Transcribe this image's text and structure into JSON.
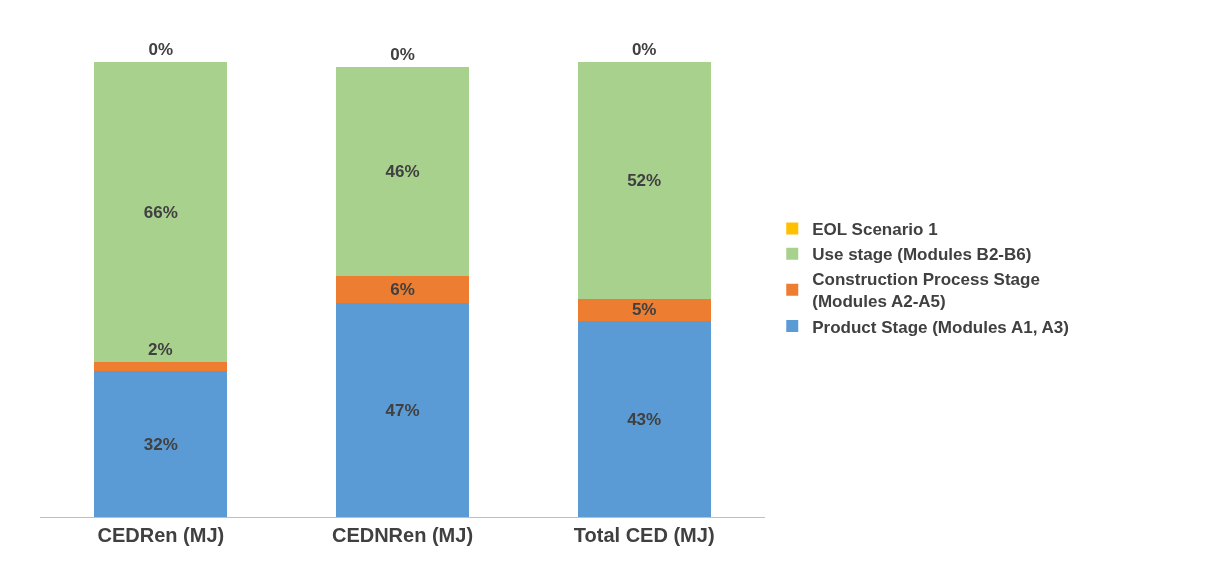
{
  "chart_data": {
    "type": "bar",
    "stacked": true,
    "categories": [
      "CEDRen (MJ)",
      "CEDNRen (MJ)",
      "Total CED (MJ)"
    ],
    "series": [
      {
        "name": "Product Stage (Modules A1, A3)",
        "color": "#5b9bd5",
        "values": [
          32,
          47,
          43
        ],
        "value_labels": [
          "32%",
          "47%",
          "43%"
        ]
      },
      {
        "name": "Construction Process Stage\n(Modules A2-A5)",
        "color": "#ed7d31",
        "values": [
          2,
          6,
          5
        ],
        "value_labels": [
          "2%",
          "6%",
          "5%"
        ]
      },
      {
        "name": "Use stage (Modules B2-B6)",
        "color": "#a9d18e",
        "values": [
          66,
          46,
          52
        ],
        "value_labels": [
          "66%",
          "46%",
          "52%"
        ]
      },
      {
        "name": "EOL Scenario 1",
        "color": "#ffc000",
        "values": [
          0,
          0,
          0
        ],
        "value_labels": [
          "0%",
          "0%",
          "0%"
        ]
      }
    ],
    "legend": "right"
  }
}
